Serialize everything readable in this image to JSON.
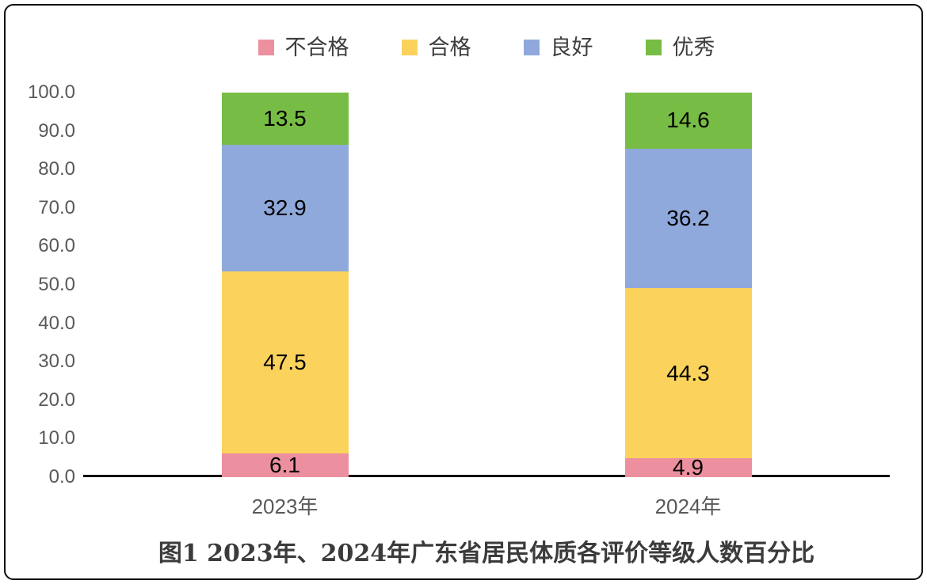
{
  "chart_data": {
    "type": "bar",
    "stacked": true,
    "title": "图1  2023年、2024年广东省居民体质各评价等级人数百分比",
    "categories": [
      "2023年",
      "2024年"
    ],
    "series": [
      {
        "name": "不合格",
        "color": "#EC8F9E",
        "values": [
          6.1,
          4.9
        ]
      },
      {
        "name": "合格",
        "color": "#FBD35C",
        "values": [
          47.5,
          44.3
        ]
      },
      {
        "name": "良好",
        "color": "#90A9DC",
        "values": [
          32.9,
          36.2
        ]
      },
      {
        "name": "优秀",
        "color": "#77BC44",
        "values": [
          13.5,
          14.6
        ]
      }
    ],
    "ylim": [
      0,
      100
    ],
    "ytick_labels": [
      "0.0",
      "10.0",
      "20.0",
      "30.0",
      "40.0",
      "50.0",
      "60.0",
      "70.0",
      "80.0",
      "90.0",
      "100.0"
    ],
    "value_label_decimals": 1,
    "legend_position": "top",
    "grid": false
  }
}
